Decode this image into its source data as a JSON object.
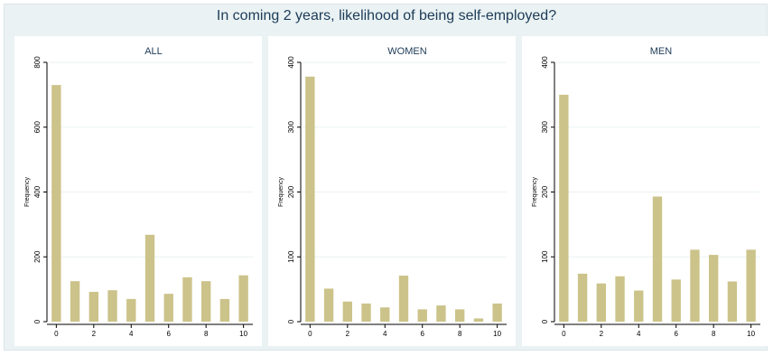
{
  "page": {
    "title": "In coming 2 years, likelihood of being self-employed?"
  },
  "colors": {
    "bar": "#ccc38a",
    "grid": "#eaf2f3",
    "background": "#eaf2f3",
    "panel": "#ffffff"
  },
  "chart_data": [
    {
      "type": "bar",
      "title": "ALL",
      "ylabel": "Frequency",
      "xlabel": "",
      "categories": [
        0,
        1,
        2,
        3,
        4,
        5,
        6,
        7,
        8,
        9,
        10
      ],
      "values": [
        730,
        125,
        92,
        97,
        70,
        268,
        86,
        137,
        125,
        70,
        143
      ],
      "ylim": [
        0,
        800
      ],
      "yticks": [
        "0",
        "200",
        "400",
        "600",
        "800"
      ],
      "xticks": [
        "0",
        "2",
        "4",
        "6",
        "8",
        "10"
      ],
      "grid": true
    },
    {
      "type": "bar",
      "title": "WOMEN",
      "ylabel": "Frequency",
      "xlabel": "",
      "categories": [
        0,
        1,
        2,
        3,
        4,
        5,
        6,
        7,
        8,
        9,
        10
      ],
      "values": [
        378,
        51,
        31,
        28,
        22,
        71,
        19,
        25,
        19,
        5,
        28
      ],
      "ylim": [
        0,
        400
      ],
      "yticks": [
        "0",
        "100",
        "200",
        "300",
        "400"
      ],
      "xticks": [
        "0",
        "2",
        "4",
        "6",
        "8",
        "10"
      ],
      "grid": true
    },
    {
      "type": "bar",
      "title": "MEN",
      "ylabel": "Frequency",
      "xlabel": "",
      "categories": [
        0,
        1,
        2,
        3,
        4,
        5,
        6,
        7,
        8,
        9,
        10
      ],
      "values": [
        350,
        74,
        59,
        70,
        48,
        193,
        65,
        111,
        103,
        62,
        111
      ],
      "ylim": [
        0,
        400
      ],
      "yticks": [
        "0",
        "100",
        "200",
        "300",
        "400"
      ],
      "xticks": [
        "0",
        "2",
        "4",
        "6",
        "8",
        "10"
      ],
      "grid": true
    }
  ]
}
